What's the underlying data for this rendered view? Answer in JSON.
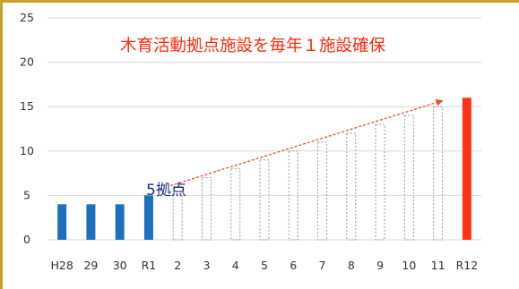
{
  "chart_data": {
    "type": "bar",
    "title": "木育活動拠点施設を毎年１施設確保",
    "annotation": "5拠点",
    "categories": [
      "H28",
      "29",
      "30",
      "R1",
      "2",
      "3",
      "4",
      "5",
      "6",
      "7",
      "8",
      "9",
      "10",
      "11",
      "R12"
    ],
    "values": [
      4,
      4,
      4,
      5,
      6,
      7,
      8,
      9,
      10,
      11,
      12,
      13,
      14,
      15,
      16
    ],
    "bar_styles": [
      "actual",
      "actual",
      "actual",
      "actual",
      "projected",
      "projected",
      "projected",
      "projected",
      "projected",
      "projected",
      "projected",
      "projected",
      "projected",
      "projected",
      "target"
    ],
    "ylim": [
      0,
      25
    ],
    "yticks": [
      0,
      5,
      10,
      15,
      20,
      25
    ],
    "grid": true,
    "colors": {
      "actual": "#1f6fbf",
      "projected": "#999999",
      "target": "#ff3311",
      "trend": "#e8512a",
      "grid": "#d9d9d9"
    }
  }
}
